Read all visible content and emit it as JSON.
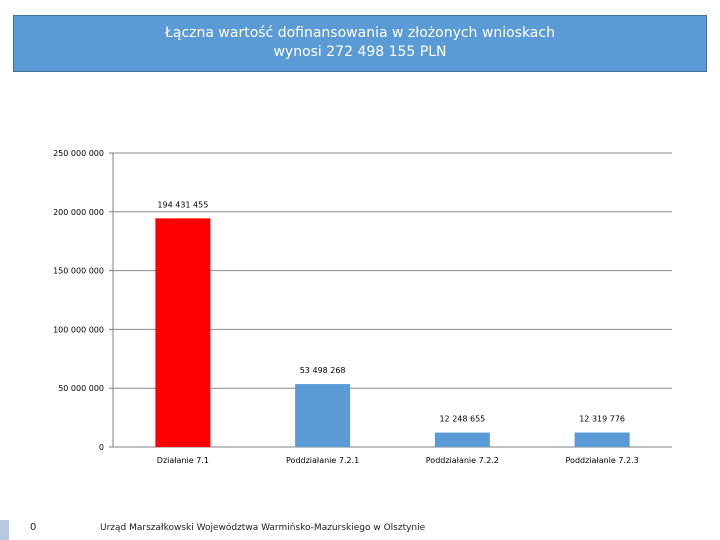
{
  "header": {
    "title_line1": "Łączna wartość dofinansowania w złożonych wnioskach",
    "title_line2": "wynosi 272 498 155 PLN"
  },
  "footer": {
    "page_number": "0",
    "institution": "Urząd Marszałkowski Województwa Warmińsko-Mazurskiego w Olsztynie"
  },
  "colors": {
    "highlight_bar": "#ff0000",
    "bar": "#5b9bd5",
    "title_bg": "#5b9bd5"
  },
  "chart_data": {
    "type": "bar",
    "categories": [
      "Działanie 7.1",
      "Poddziałanie 7.2.1",
      "Poddziałanie 7.2.2",
      "Poddziałanie 7.2.3"
    ],
    "values": [
      194431455,
      53498268,
      12248655,
      12319776
    ],
    "value_labels": [
      "194 431 455",
      "53 498 268",
      "12 248 655",
      "12 319 776"
    ],
    "bar_colors": [
      "#ff0000",
      "#5b9bd5",
      "#5b9bd5",
      "#5b9bd5"
    ],
    "yticks": [
      0,
      50000000,
      100000000,
      150000000,
      200000000,
      250000000
    ],
    "ytick_labels": [
      "0",
      "50 000 000",
      "100 000 000",
      "150 000 000",
      "200 000 000",
      "250 000 000"
    ],
    "ylim": [
      0,
      250000000
    ],
    "grid": true,
    "title": "Łączna wartość dofinansowania w złożonych wnioskach wynosi 272 498 155 PLN",
    "xlabel": "",
    "ylabel": ""
  }
}
